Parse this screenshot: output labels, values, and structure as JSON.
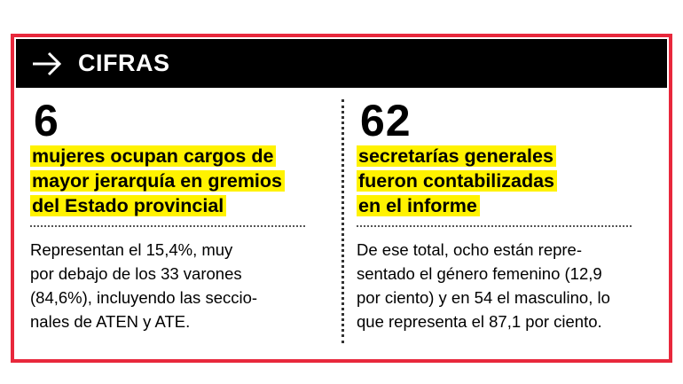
{
  "header": {
    "icon": "arrow-right-icon",
    "title": "CIFRAS"
  },
  "colors": {
    "frame": "#e8283c",
    "highlight": "#fff200",
    "header_bg": "#000000"
  },
  "left": {
    "number": "6",
    "headline_lines": [
      "mujeres ocupan cargos de",
      "mayor jerarquía en gremios",
      "del Estado provincial"
    ],
    "body_lines": [
      "Representan el 15,4%, muy",
      "por debajo de los 33 varones",
      "(84,6%), incluyendo las seccio-",
      "nales de ATEN y ATE."
    ]
  },
  "right": {
    "number": "62",
    "headline_lines": [
      "secretarías generales",
      "fueron contabilizadas",
      "en el informe"
    ],
    "body_lines": [
      "De ese total, ocho están repre-",
      "sentado el género femenino (12,9",
      "por ciento) y en 54 el masculino, lo",
      "que representa el 87,1 por ciento."
    ]
  }
}
